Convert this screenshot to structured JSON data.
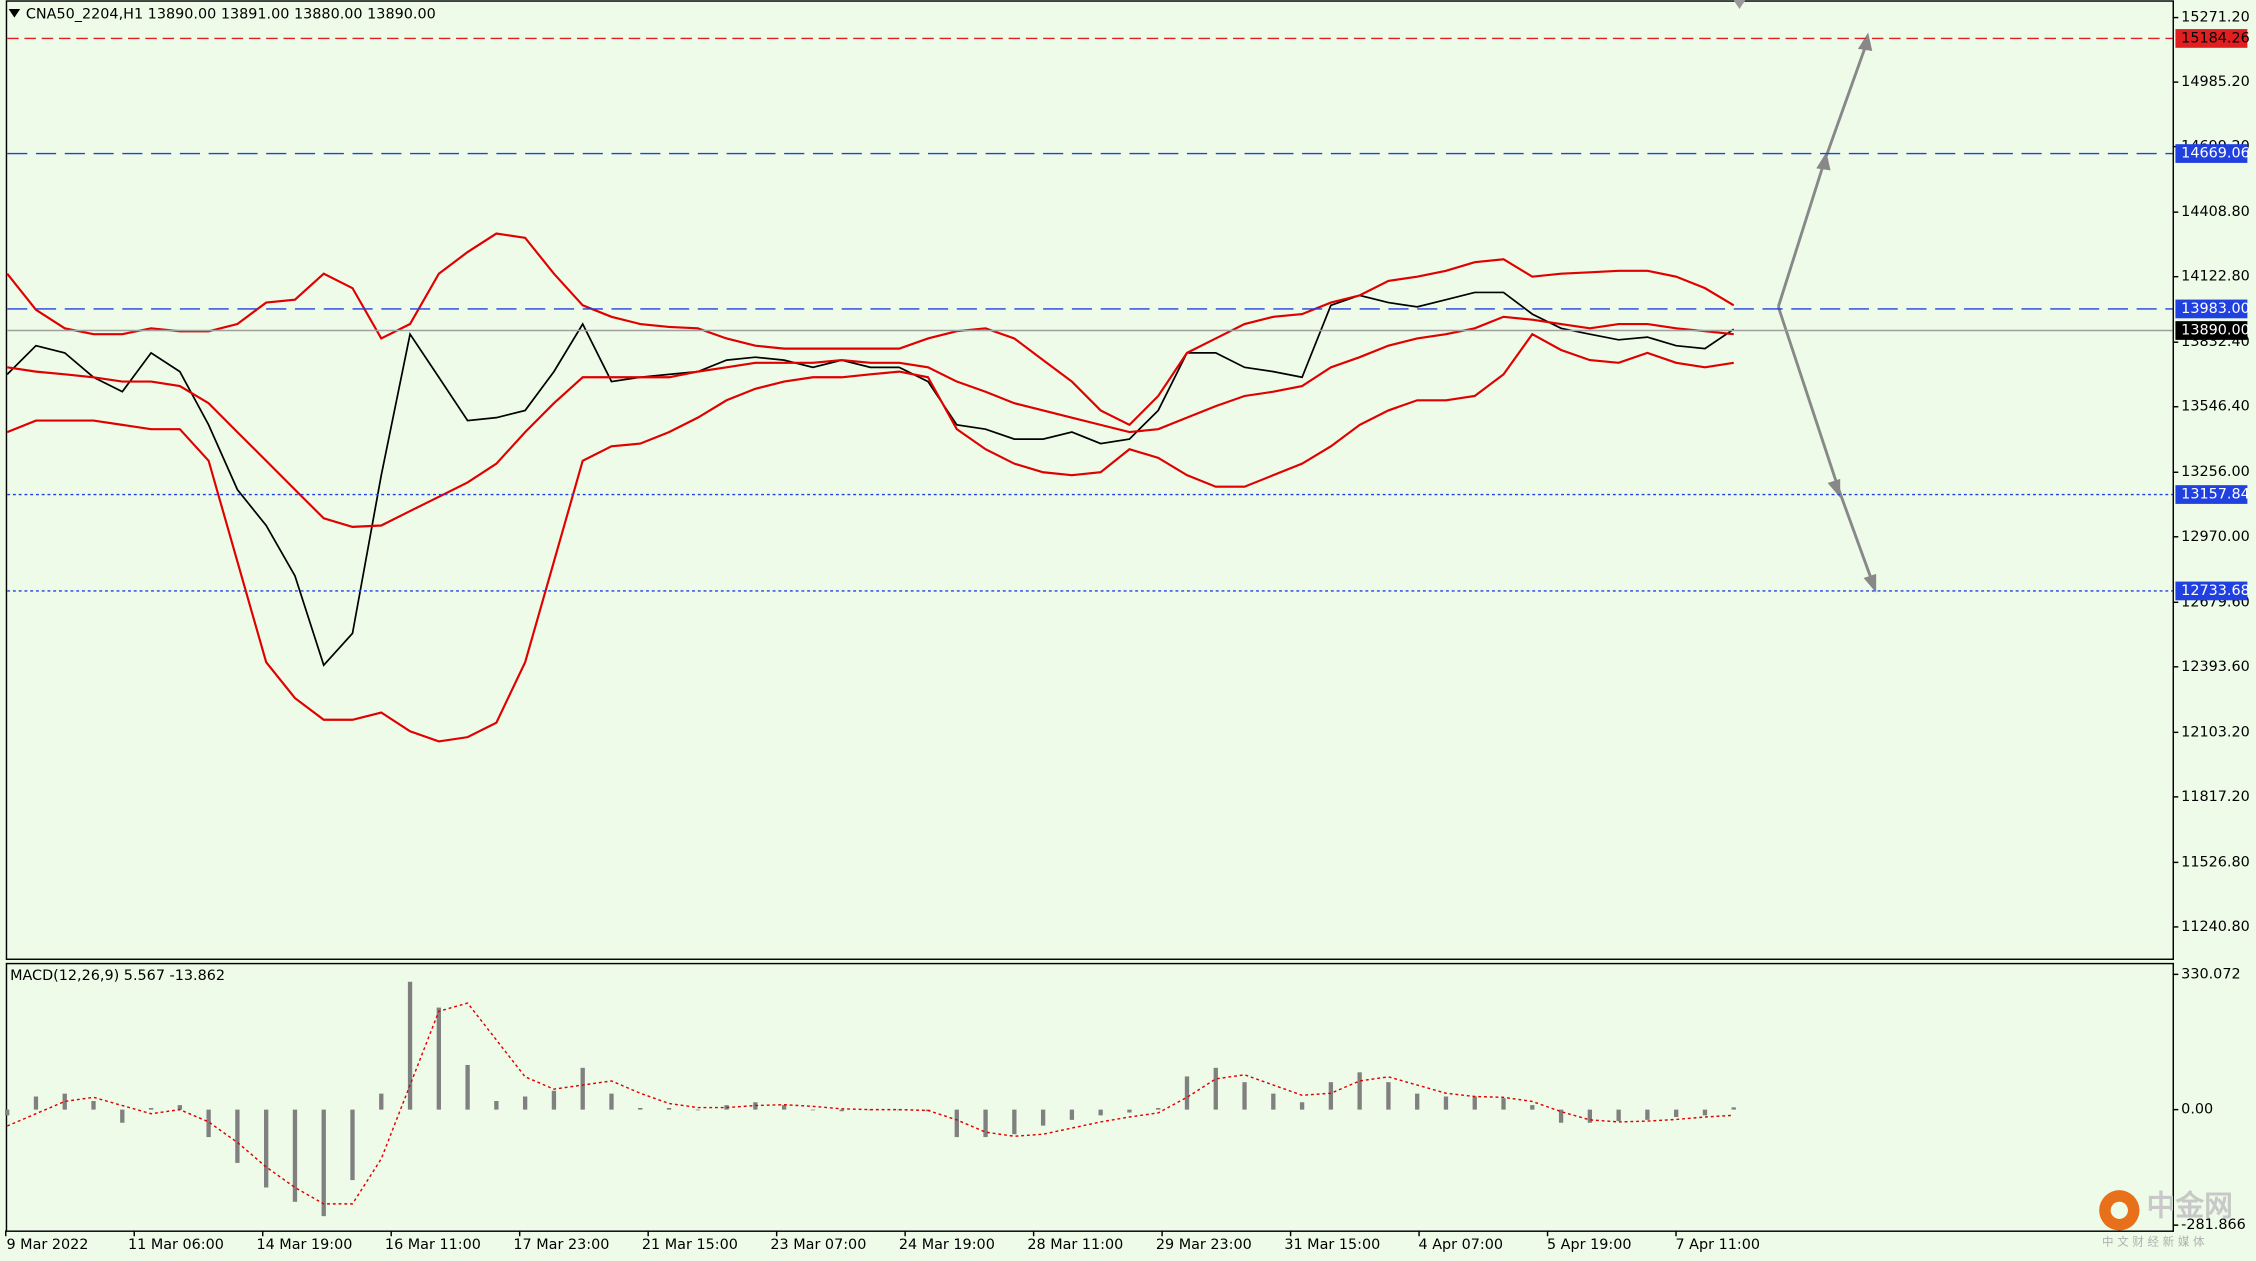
{
  "header": "CNA50_2204,H1  13890.00 13891.00 13880.00 13890.00",
  "time_labels": [
    "9 Mar 2022",
    "11 Mar 06:00",
    "14 Mar 19:00",
    "16 Mar 11:00",
    "17 Mar 23:00",
    "21 Mar 15:00",
    "23 Mar 07:00",
    "24 Mar 19:00",
    "28 Mar 11:00",
    "29 Mar 23:00",
    "31 Mar 15:00",
    "4 Apr 07:00",
    "5 Apr 19:00",
    "7 Apr 11:00"
  ],
  "watermark": {
    "logo": "中金网",
    "tagline": "中 文 财 经 新 媒 体"
  },
  "chart_data": [
    {
      "type": "line",
      "ylim": [
        11094.3,
        15347.7
      ],
      "yticks": [
        {
          "value": 15271.2,
          "label": "15271.20"
        },
        {
          "value": 14985.2,
          "label": "14985.20"
        },
        {
          "value": 14699.2,
          "label": "14699.20"
        },
        {
          "value": 14408.8,
          "label": "14408.80"
        },
        {
          "value": 14122.8,
          "label": "14122.80"
        },
        {
          "value": 13832.4,
          "label": "13832.40"
        },
        {
          "value": 13546.4,
          "label": "13546.40"
        },
        {
          "value": 13256,
          "label": "13256.00"
        },
        {
          "value": 12970,
          "label": "12970.00"
        },
        {
          "value": 12679.6,
          "label": "12679.60"
        },
        {
          "value": 12393.6,
          "label": "12393.60"
        },
        {
          "value": 12103.2,
          "label": "12103.20"
        },
        {
          "value": 11817.2,
          "label": "11817.20"
        },
        {
          "value": 11526.8,
          "label": "11526.80"
        },
        {
          "value": 11240.8,
          "label": "11240.80"
        }
      ],
      "levels": [
        {
          "value": 15184.26,
          "label": "15184.26",
          "color": "#e02020",
          "style": "dash"
        },
        {
          "value": 14669.06,
          "label": "14669.06",
          "color": "#2040e0",
          "style": "dash"
        },
        {
          "value": 13983,
          "label": "13983.00",
          "color": "#2040e0",
          "style": "dash"
        },
        {
          "value": 13890,
          "label": "13890.00",
          "color": "#000000",
          "style": "current"
        },
        {
          "value": 13157.84,
          "label": "13157.84",
          "color": "#2040e0",
          "style": "dot"
        },
        {
          "value": 12733.68,
          "label": "12733.68",
          "color": "#2040e0",
          "style": "dot"
        }
      ],
      "series": [
        {
          "color": "#000000",
          "values": [
            13690,
            13817,
            13785,
            13677,
            13613,
            13785,
            13702,
            13466,
            13179,
            13020,
            12797,
            12401,
            12542,
            13243,
            13868,
            13677,
            13485,
            13498,
            13530,
            13702,
            13913,
            13658,
            13677,
            13690,
            13702,
            13753,
            13766,
            13753,
            13721,
            13753,
            13721,
            13721,
            13658,
            13466,
            13447,
            13403,
            13403,
            13434,
            13383,
            13403,
            13530,
            13785,
            13785,
            13721,
            13702,
            13677,
            13996,
            14040,
            14008,
            13989,
            14021,
            14053,
            14053,
            13957,
            13894,
            13868,
            13843,
            13855,
            13817,
            13804,
            13890
          ]
        },
        {
          "color": "#e00000",
          "values": [
            14136,
            13976,
            13894,
            13868,
            13868,
            13894,
            13881,
            13881,
            13913,
            14008,
            14021,
            14136,
            14072,
            13849,
            13913,
            14136,
            14232,
            14314,
            14295,
            14136,
            13996,
            13945,
            13913,
            13900,
            13894,
            13849,
            13817,
            13804,
            13804,
            13804,
            13804,
            13804,
            13849,
            13881,
            13894,
            13849,
            13753,
            13658,
            13530,
            13466,
            13594,
            13785,
            13849,
            13913,
            13945,
            13957,
            14008,
            14040,
            14104,
            14123,
            14149,
            14187,
            14200,
            14123,
            14136,
            14142,
            14149,
            14149,
            14123,
            14072,
            13996
          ]
        },
        {
          "color": "#e00000",
          "values": [
            13721,
            13702,
            13690,
            13677,
            13658,
            13658,
            13638,
            13562,
            13434,
            13307,
            13179,
            13052,
            13014,
            13020,
            13084,
            13147,
            13211,
            13294,
            13434,
            13562,
            13677,
            13677,
            13677,
            13677,
            13702,
            13721,
            13741,
            13741,
            13741,
            13753,
            13741,
            13741,
            13721,
            13658,
            13613,
            13562,
            13530,
            13498,
            13466,
            13434,
            13447,
            13498,
            13549,
            13594,
            13613,
            13638,
            13721,
            13766,
            13817,
            13849,
            13868,
            13894,
            13945,
            13932,
            13913,
            13894,
            13913,
            13913,
            13894,
            13881,
            13868
          ]
        },
        {
          "color": "#e00000",
          "values": [
            13434,
            13485,
            13485,
            13485,
            13466,
            13447,
            13447,
            13307,
            12860,
            12414,
            12255,
            12159,
            12159,
            12191,
            12108,
            12063,
            12082,
            12146,
            12414,
            12860,
            13307,
            13371,
            13383,
            13434,
            13498,
            13575,
            13626,
            13658,
            13677,
            13677,
            13690,
            13702,
            13677,
            13447,
            13358,
            13294,
            13256,
            13243,
            13256,
            13358,
            13320,
            13243,
            13192,
            13192,
            13243,
            13294,
            13371,
            13466,
            13530,
            13575,
            13575,
            13594,
            13690,
            13868,
            13798,
            13753,
            13741,
            13785,
            13741,
            13721,
            13741
          ]
        }
      ]
    },
    {
      "type": "bar",
      "title": "MACD(12,26,9) 5.567 -13.862",
      "ylim": [
        -294.9,
        354.65
      ],
      "yticks": [
        330.072,
        {
          "value": 0,
          "label": "0.00"
        },
        -281.866
      ],
      "series": [
        {
          "color": "#808080",
          "values": [
            -14,
            32,
            39,
            21,
            -32,
            4,
            11,
            -67,
            -130,
            -190,
            -225,
            -260,
            -172,
            39,
            312,
            249,
            109,
            21,
            32,
            46,
            102,
            39,
            4,
            4,
            0,
            11,
            18,
            11,
            0,
            -4,
            0,
            0,
            -4,
            -67,
            -67,
            -60,
            -39,
            -25,
            -14,
            -7,
            4,
            81,
            102,
            67,
            39,
            18,
            67,
            91,
            67,
            39,
            32,
            32,
            28,
            11,
            -32,
            -32,
            -28,
            -25,
            -18,
            -14,
            5.567
          ]
        },
        {
          "color": "#e00000",
          "values": [
            -40,
            -10,
            20,
            30,
            10,
            -10,
            0,
            -30,
            -80,
            -140,
            -190,
            -230,
            -230,
            -120,
            60,
            240,
            260,
            170,
            80,
            50,
            60,
            70,
            40,
            15,
            5,
            5,
            10,
            12,
            8,
            2,
            0,
            0,
            -2,
            -25,
            -55,
            -65,
            -60,
            -45,
            -30,
            -18,
            -8,
            30,
            75,
            85,
            60,
            35,
            40,
            70,
            80,
            60,
            40,
            32,
            30,
            20,
            -5,
            -25,
            -30,
            -28,
            -24,
            -18,
            -13.862
          ]
        }
      ]
    }
  ]
}
